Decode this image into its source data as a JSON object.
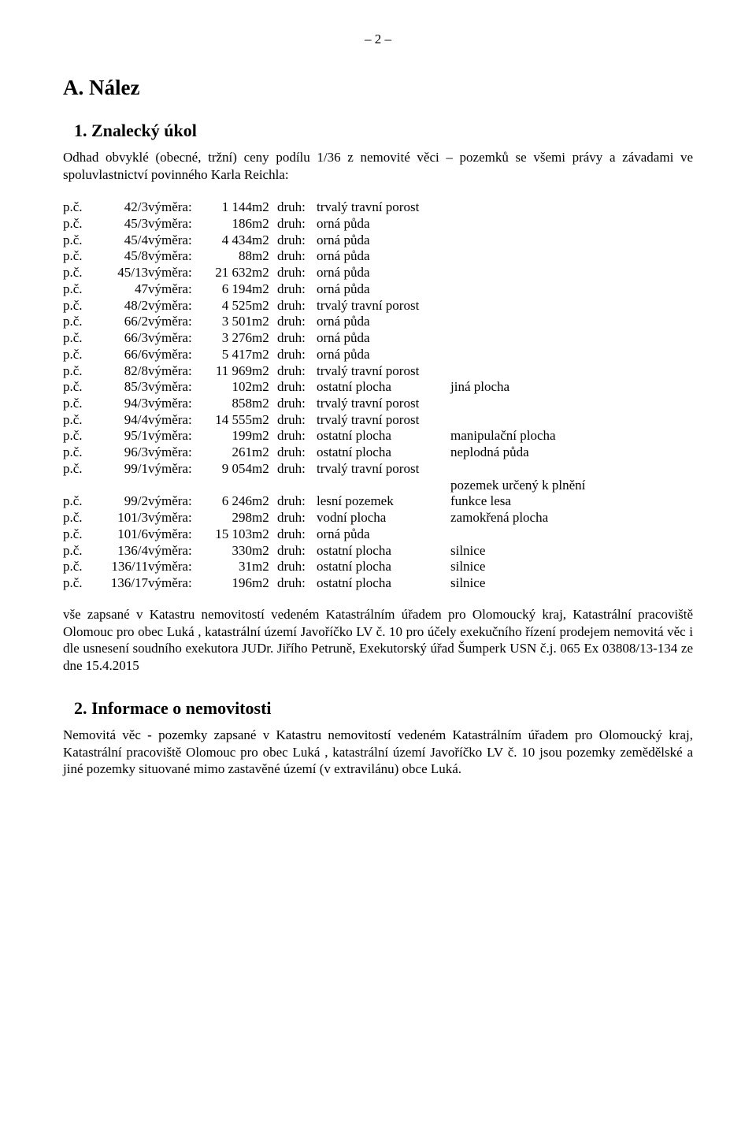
{
  "page_number": "– 2 –",
  "section_a": {
    "heading": "A. Nález"
  },
  "sub1": {
    "heading": "1. Znalecký úkol",
    "intro": "Odhad obvyklé (obecné, tržní)  ceny podílu 1/36 z  nemovité věci – pozemků se všemi právy a závadami ve spoluvlastnictví  povinného  Karla Reichla:"
  },
  "labels": {
    "pc": "p.č.",
    "vymera": "výměra:",
    "unit": "m2",
    "druh": "druh:"
  },
  "rows": [
    {
      "num": "42/3",
      "area": "1 144",
      "kind": "trvalý travní porost",
      "extra": ""
    },
    {
      "num": "45/3",
      "area": "186",
      "kind": "orná půda",
      "extra": ""
    },
    {
      "num": "45/4",
      "area": "4 434",
      "kind": "orná půda",
      "extra": ""
    },
    {
      "num": "45/8",
      "area": "88",
      "kind": "orná půda",
      "extra": ""
    },
    {
      "num": "45/13",
      "area": "21 632",
      "kind": "orná půda",
      "extra": ""
    },
    {
      "num": "47",
      "area": "6 194",
      "kind": "orná půda",
      "extra": ""
    },
    {
      "num": "48/2",
      "area": "4 525",
      "kind": "trvalý travní porost",
      "extra": ""
    },
    {
      "num": "66/2",
      "area": "3 501",
      "kind": "orná půda",
      "extra": ""
    },
    {
      "num": "66/3",
      "area": "3 276",
      "kind": "orná půda",
      "extra": ""
    },
    {
      "num": "66/6",
      "area": "5 417",
      "kind": "orná půda",
      "extra": ""
    },
    {
      "num": "82/8",
      "area": "11 969",
      "kind": "trvalý travní porost",
      "extra": ""
    },
    {
      "num": "85/3",
      "area": "102",
      "kind": "ostatní plocha",
      "extra": "jiná plocha"
    },
    {
      "num": "94/3",
      "area": "858",
      "kind": "trvalý travní porost",
      "extra": ""
    },
    {
      "num": "94/4",
      "area": "14 555",
      "kind": "trvalý travní porost",
      "extra": ""
    },
    {
      "num": "95/1",
      "area": "199",
      "kind": "ostatní plocha",
      "extra": "manipulační plocha"
    },
    {
      "num": "96/3",
      "area": "261",
      "kind": "ostatní plocha",
      "extra": "neplodná půda"
    },
    {
      "num": "99/1",
      "area": "9 054",
      "kind": "trvalý travní porost",
      "extra": ""
    },
    {
      "num": "",
      "area": "",
      "kind": "",
      "extra": "pozemek určený k plnění",
      "blank": true
    },
    {
      "num": "99/2",
      "area": "6 246",
      "kind": "lesní pozemek",
      "extra": "funkce lesa"
    },
    {
      "num": "101/3",
      "area": "298",
      "kind": "vodní plocha",
      "extra": "zamokřená plocha"
    },
    {
      "num": "101/6",
      "area": "15 103",
      "kind": "orná půda",
      "extra": ""
    },
    {
      "num": "136/4",
      "area": "330",
      "kind": "ostatní plocha",
      "extra": "silnice"
    },
    {
      "num": "136/11",
      "area": "31",
      "kind": "ostatní plocha",
      "extra": "silnice"
    },
    {
      "num": "136/17",
      "area": "196",
      "kind": "ostatní plocha",
      "extra": "silnice"
    }
  ],
  "paragraph_after_table": "vše zapsané v Katastru nemovitostí vedeném Katastrálním úřadem pro Olomoucký kraj, Katastrální pracoviště Olomouc pro obec Luká , katastrální území Javoříčko  LV č.  10  pro účely exekučního řízení prodejem nemovitá věc i dle usnesení soudního exekutora JUDr.  Jiřího Petruně, Exekutorský úřad Šumperk  USN č.j.  065 Ex 03808/13-134 ze dne 15.4.2015",
  "sub2": {
    "heading": "2. Informace o nemovitosti",
    "body": "Nemovitá věc -  pozemky   zapsané  v Katastru nemovitostí vedeném  Katastrálním úřadem pro Olomoucký kraj, Katastrální pracoviště Olomouc pro obec Luká , katastrální území Javoříčko  LV č.  10  jsou pozemky zemědělské a jiné pozemky  situované mimo zastavěné území (v extravilánu) obce Luká."
  }
}
